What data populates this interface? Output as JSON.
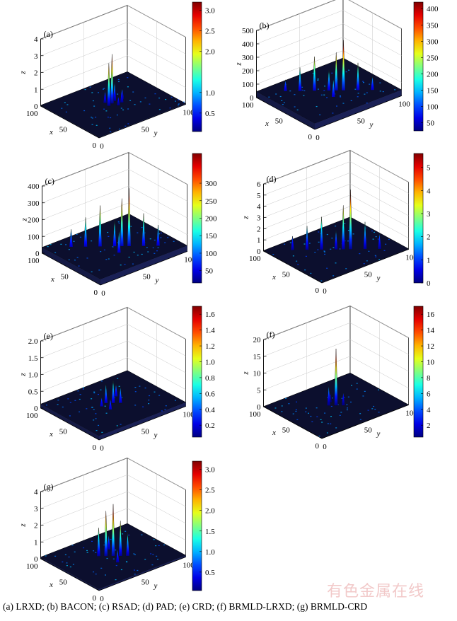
{
  "caption": "(a)  LRXD;  (b)  BACON; (c) RSAD; (d) PAD; (e) CRD; (f) BRMLD-LRXD; (g) BRMLD-CRD",
  "watermark": "有色金属在线",
  "axis_labels": {
    "x": "x",
    "y": "y",
    "z": "z"
  },
  "colormap": "jet",
  "chart_data": [
    {
      "panel": "(a)",
      "type": "surface3d",
      "x_ticks": [
        "100",
        "50",
        "0"
      ],
      "y_ticks": [
        "0",
        "50",
        "100"
      ],
      "z_ticks": [
        "0",
        "1",
        "2",
        "3",
        "4"
      ],
      "zlim": [
        0,
        4
      ],
      "colorbar": {
        "ticks": [
          "3.0",
          "2.5",
          "2.0",
          "1.0",
          "0.5"
        ],
        "values": [
          3.0,
          2.5,
          2.0,
          1.0,
          0.5
        ],
        "range": [
          0.05,
          3.2
        ]
      },
      "baseline": 0.05,
      "peaks": [
        [
          52,
          50,
          3.0
        ],
        [
          50,
          45,
          2.6
        ],
        [
          55,
          55,
          1.2
        ],
        [
          47,
          58,
          0.9
        ],
        [
          58,
          46,
          0.8
        ],
        [
          52,
          62,
          0.7
        ],
        [
          44,
          52,
          0.6
        ]
      ]
    },
    {
      "panel": "(b)",
      "type": "surface3d",
      "x_ticks": [
        "100",
        "50",
        "0"
      ],
      "y_ticks": [
        "0",
        "50",
        "100"
      ],
      "z_ticks": [
        "0",
        "100",
        "200",
        "300",
        "400",
        "500"
      ],
      "zlim": [
        0,
        500
      ],
      "colorbar": {
        "ticks": [
          "400",
          "350",
          "300",
          "250",
          "200",
          "150",
          "100",
          "50"
        ],
        "values": [
          400,
          350,
          300,
          250,
          200,
          150,
          100,
          50
        ],
        "range": [
          25,
          420
        ]
      },
      "baseline": 45,
      "peaks": [
        [
          40,
          60,
          420
        ],
        [
          45,
          55,
          330
        ],
        [
          60,
          40,
          300
        ],
        [
          30,
          70,
          250
        ],
        [
          70,
          30,
          220
        ],
        [
          50,
          50,
          200
        ],
        [
          20,
          80,
          150
        ],
        [
          80,
          20,
          130
        ],
        [
          35,
          45,
          180
        ]
      ]
    },
    {
      "panel": "(c)",
      "type": "surface3d",
      "x_ticks": [
        "100",
        "50",
        "0"
      ],
      "y_ticks": [
        "0",
        "50",
        "100"
      ],
      "z_ticks": [
        "0",
        "100",
        "200",
        "300",
        "400"
      ],
      "zlim": [
        0,
        400
      ],
      "colorbar": {
        "ticks": [
          "300",
          "250",
          "200",
          "150",
          "100",
          "50"
        ],
        "values": [
          300,
          250,
          200,
          150,
          100,
          50
        ],
        "range": [
          15,
          385
        ]
      },
      "baseline": 35,
      "peaks": [
        [
          40,
          60,
          380
        ],
        [
          45,
          55,
          320
        ],
        [
          60,
          40,
          280
        ],
        [
          30,
          70,
          230
        ],
        [
          70,
          30,
          210
        ],
        [
          50,
          50,
          190
        ],
        [
          20,
          80,
          160
        ],
        [
          80,
          20,
          140
        ],
        [
          35,
          45,
          170
        ]
      ]
    },
    {
      "panel": "(d)",
      "type": "surface3d",
      "x_ticks": [
        "100",
        "50",
        "0"
      ],
      "y_ticks": [
        "0",
        "50",
        "100"
      ],
      "z_ticks": [
        "0",
        "1",
        "2",
        "3",
        "4",
        "5",
        "6"
      ],
      "zlim": [
        0,
        6
      ],
      "colorbar": {
        "ticks": [
          "5",
          "4",
          "3",
          "2",
          "1",
          "0"
        ],
        "values": [
          5,
          4,
          3,
          2,
          1,
          0
        ],
        "range": [
          0,
          5.6
        ]
      },
      "baseline": 0.05,
      "peaks": [
        [
          40,
          60,
          5.4
        ],
        [
          45,
          55,
          4.0
        ],
        [
          60,
          40,
          3.0
        ],
        [
          30,
          70,
          2.5
        ],
        [
          70,
          30,
          2.2
        ],
        [
          50,
          50,
          1.8
        ],
        [
          20,
          80,
          1.5
        ],
        [
          80,
          20,
          1.3
        ]
      ]
    },
    {
      "panel": "(e)",
      "type": "surface3d",
      "x_ticks": [
        "100",
        "50",
        "0"
      ],
      "y_ticks": [
        "0",
        "50",
        "100"
      ],
      "z_ticks": [
        "0",
        "0.5",
        "1.0",
        "1.5",
        "2.0"
      ],
      "zlim": [
        0,
        2.0
      ],
      "colorbar": {
        "ticks": [
          "1.6",
          "1.4",
          "1.2",
          "1.0",
          "0.8",
          "0.6",
          "0.4",
          "0.2"
        ],
        "values": [
          1.6,
          1.4,
          1.2,
          1.0,
          0.8,
          0.6,
          0.4,
          0.2
        ],
        "range": [
          0.05,
          1.7
        ]
      },
      "baseline": 0.12,
      "peaks": [
        [
          50,
          50,
          0.8
        ],
        [
          55,
          45,
          0.7
        ],
        [
          45,
          55,
          0.6
        ],
        [
          60,
          60,
          0.5
        ],
        [
          40,
          40,
          0.45
        ],
        [
          52,
          38,
          0.4
        ]
      ]
    },
    {
      "panel": "(f)",
      "type": "surface3d",
      "x_ticks": [
        "100",
        "50",
        "0"
      ],
      "y_ticks": [
        "0",
        "50",
        "100"
      ],
      "z_ticks": [
        "0",
        "5",
        "10",
        "15",
        "20"
      ],
      "zlim": [
        0,
        20
      ],
      "colorbar": {
        "ticks": [
          "16",
          "14",
          "12",
          "10",
          "8",
          "6",
          "4",
          "2"
        ],
        "values": [
          16,
          14,
          12,
          10,
          8,
          6,
          4,
          2
        ],
        "range": [
          0.5,
          17
        ]
      },
      "baseline": 0.05,
      "peaks": [
        [
          50,
          50,
          17
        ],
        [
          55,
          45,
          6
        ],
        [
          45,
          55,
          4
        ],
        [
          60,
          50,
          3
        ]
      ]
    },
    {
      "panel": "(g)",
      "type": "surface3d",
      "x_ticks": [
        "100",
        "50",
        "0"
      ],
      "y_ticks": [
        "0",
        "50",
        "100"
      ],
      "z_ticks": [
        "0",
        "1",
        "2",
        "3",
        "4"
      ],
      "zlim": [
        0,
        4
      ],
      "colorbar": {
        "ticks": [
          "3.0",
          "2.5",
          "2.0",
          "1.5",
          "1.0",
          "0.5"
        ],
        "values": [
          3.0,
          2.5,
          2.0,
          1.5,
          1.0,
          0.5
        ],
        "range": [
          0.05,
          3.2
        ]
      },
      "baseline": 0.1,
      "peaks": [
        [
          50,
          50,
          3.2
        ],
        [
          55,
          45,
          2.8
        ],
        [
          45,
          55,
          2.2
        ],
        [
          60,
          40,
          1.8
        ],
        [
          40,
          60,
          1.5
        ],
        [
          65,
          55,
          1.0
        ],
        [
          35,
          45,
          0.9
        ]
      ]
    }
  ]
}
